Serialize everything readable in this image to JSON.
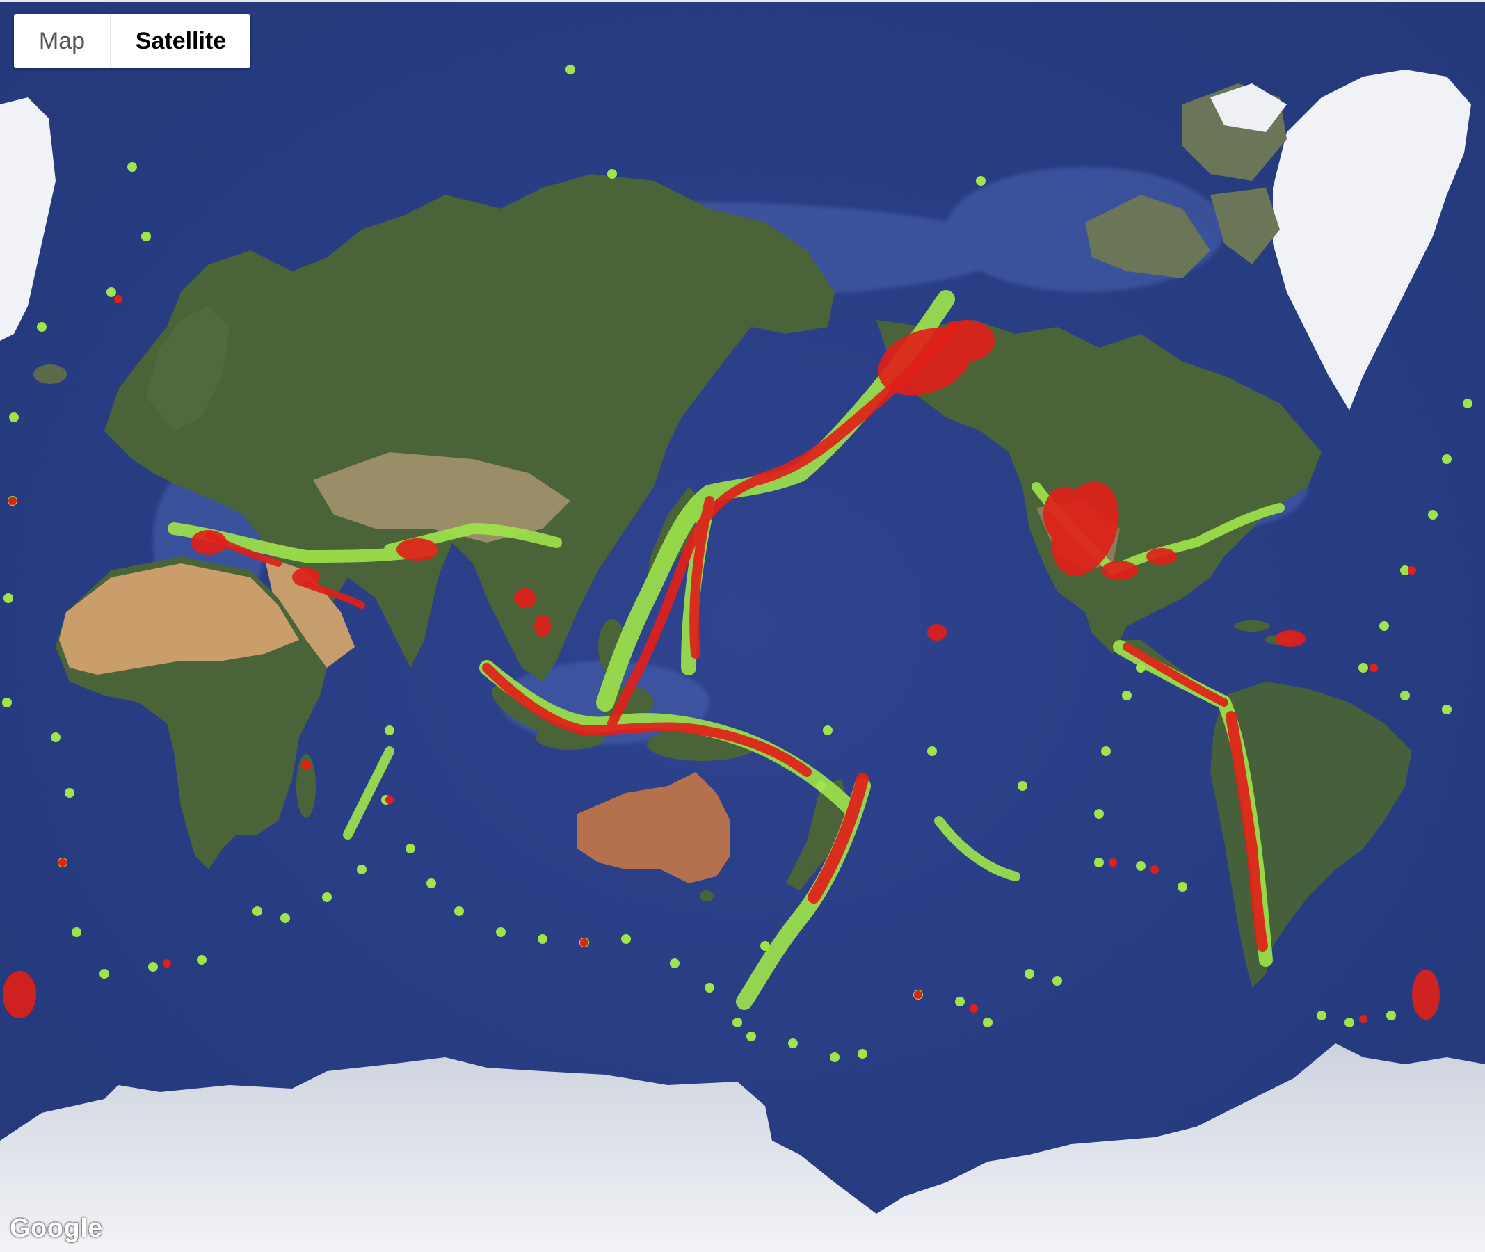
{
  "map_type_control": {
    "options": [
      "Map",
      "Satellite"
    ],
    "selected": "Satellite"
  },
  "logo": "Google",
  "colors": {
    "ocean": "#2c4088",
    "land": "#4a6238",
    "ice": "#eef0f4",
    "heat_high": "#e0201a",
    "heat_low": "#9ee44a"
  },
  "icons": [
    "map-type-control",
    "google-logo"
  ],
  "layer": "heatmap"
}
